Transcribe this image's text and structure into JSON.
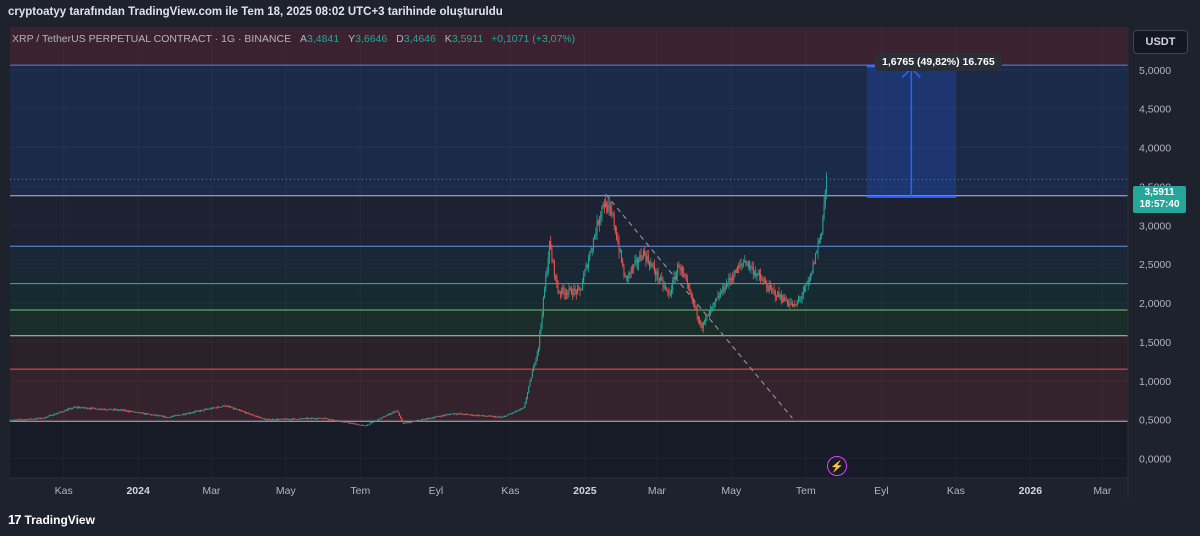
{
  "caption": "cryptoatyy tarafından TradingView.com ile Tem 18, 2025 08:02 UTC+3 tarihinde oluşturuldu",
  "legend": {
    "symbol": "XRP / TetherUS PERPETUAL CONTRACT · 1G · BINANCE",
    "open_label": "A",
    "open_value": "3,4841",
    "high_label": "Y",
    "high_value": "3,6646",
    "low_label": "D",
    "low_value": "3,4646",
    "close_label": "K",
    "close_value": "3,5911",
    "change": "+0,1071 (+3,07%)"
  },
  "currency_button": "USDT",
  "measure_label": "1,6765 (49,82%) 16.765",
  "price_badge": {
    "price": "3,5911",
    "countdown": "18:57:40"
  },
  "footer": {
    "logo": "17",
    "brand": "TradingView"
  },
  "colors": {
    "up": "#26a69a",
    "down": "#ef5350",
    "measure": "#2962ff",
    "background": "#1e222d"
  },
  "chart_data": {
    "type": "candlestick",
    "symbol": "XRPUSDT",
    "timeframe": "1G",
    "y_axis_ticks": [
      "5,0000",
      "4,5000",
      "4,0000",
      "3,5000",
      "3,0000",
      "2,5000",
      "2,0000",
      "1,5000",
      "1,0000",
      "0,5000",
      "0,0000"
    ],
    "y_tick_values": [
      5.0,
      4.5,
      4.0,
      3.5,
      3.0,
      2.5,
      2.0,
      1.5,
      1.0,
      0.5,
      0.0
    ],
    "ylim": [
      -0.25,
      5.55
    ],
    "x_axis_ticks": [
      {
        "label": "Kas",
        "t": "2023-11-01"
      },
      {
        "label": "2024",
        "t": "2024-01-01"
      },
      {
        "label": "Mar",
        "t": "2024-03-01"
      },
      {
        "label": "May",
        "t": "2024-05-01"
      },
      {
        "label": "Tem",
        "t": "2024-07-01"
      },
      {
        "label": "Eyl",
        "t": "2024-09-01"
      },
      {
        "label": "Kas",
        "t": "2024-11-01"
      },
      {
        "label": "2025",
        "t": "2025-01-01"
      },
      {
        "label": "Mar",
        "t": "2025-03-01"
      },
      {
        "label": "May",
        "t": "2025-05-01"
      },
      {
        "label": "Tem",
        "t": "2025-07-01"
      },
      {
        "label": "Eyl",
        "t": "2025-09-01"
      },
      {
        "label": "Kas",
        "t": "2025-11-01"
      },
      {
        "label": "2026",
        "t": "2026-01-01"
      },
      {
        "label": "Mar",
        "t": "2026-03-01"
      }
    ],
    "price_path": [
      {
        "t": "2023-09-18",
        "v": 0.49
      },
      {
        "t": "2023-10-15",
        "v": 0.52
      },
      {
        "t": "2023-11-10",
        "v": 0.66
      },
      {
        "t": "2023-12-20",
        "v": 0.62
      },
      {
        "t": "2024-01-25",
        "v": 0.53
      },
      {
        "t": "2024-03-12",
        "v": 0.68
      },
      {
        "t": "2024-04-15",
        "v": 0.5
      },
      {
        "t": "2024-06-01",
        "v": 0.52
      },
      {
        "t": "2024-07-05",
        "v": 0.42
      },
      {
        "t": "2024-07-31",
        "v": 0.62
      },
      {
        "t": "2024-08-05",
        "v": 0.45
      },
      {
        "t": "2024-09-15",
        "v": 0.58
      },
      {
        "t": "2024-10-25",
        "v": 0.53
      },
      {
        "t": "2024-11-12",
        "v": 0.65
      },
      {
        "t": "2024-11-24",
        "v": 1.45
      },
      {
        "t": "2024-12-03",
        "v": 2.75
      },
      {
        "t": "2024-12-10",
        "v": 2.15
      },
      {
        "t": "2024-12-28",
        "v": 2.15
      },
      {
        "t": "2025-01-16",
        "v": 3.3
      },
      {
        "t": "2025-01-24",
        "v": 3.1
      },
      {
        "t": "2025-02-03",
        "v": 2.3
      },
      {
        "t": "2025-02-18",
        "v": 2.65
      },
      {
        "t": "2025-03-11",
        "v": 2.1
      },
      {
        "t": "2025-03-19",
        "v": 2.5
      },
      {
        "t": "2025-04-07",
        "v": 1.7
      },
      {
        "t": "2025-04-25",
        "v": 2.2
      },
      {
        "t": "2025-05-12",
        "v": 2.55
      },
      {
        "t": "2025-06-01",
        "v": 2.18
      },
      {
        "t": "2025-06-22",
        "v": 1.95
      },
      {
        "t": "2025-07-04",
        "v": 2.28
      },
      {
        "t": "2025-07-14",
        "v": 2.95
      },
      {
        "t": "2025-07-18",
        "v": 3.59
      }
    ],
    "horizontal_levels": [
      {
        "price": 5.06,
        "color": "#5b8cff"
      },
      {
        "price": 3.38,
        "color": "#c9ccd4"
      },
      {
        "price": 2.73,
        "color": "#6aa0ff"
      },
      {
        "price": 2.25,
        "color": "#39c0b4"
      },
      {
        "price": 1.91,
        "color": "#7ed67a"
      },
      {
        "price": 1.58,
        "color": "#c4e6a7"
      },
      {
        "price": 1.15,
        "color": "#ff5b52"
      },
      {
        "price": 0.48,
        "color": "#c9ccd4"
      }
    ],
    "current_price": 3.5911,
    "measure": {
      "from_price": 3.366,
      "to_price": 5.0425,
      "t_start": "2025-08-20",
      "t_end": "2025-11-01",
      "change": 1.6765,
      "change_pct": 49.82,
      "ticks": 16765
    },
    "trendline": [
      {
        "t": "2025-01-18",
        "v": 3.4
      },
      {
        "t": "2025-06-20",
        "v": 0.52
      }
    ]
  }
}
